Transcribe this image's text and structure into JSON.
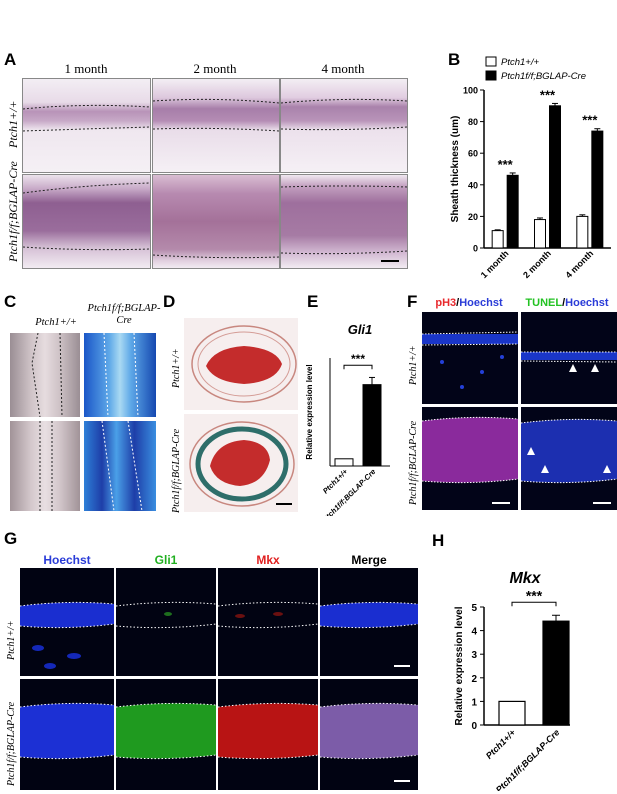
{
  "panels": {
    "A": "A",
    "B": "B",
    "C": "C",
    "D": "D",
    "E": "E",
    "F": "F",
    "G": "G",
    "H": "H"
  },
  "panelA": {
    "columns": [
      "1 month",
      "2 month",
      "4 month"
    ],
    "rows": [
      "Ptch1+/+",
      "Ptch1f/f;BGLAP-Cre"
    ]
  },
  "panelC": {
    "columns": [
      "Ptch1+/+",
      "Ptch1f/f;BGLAP-Cre"
    ]
  },
  "panelD": {
    "rows": [
      "Ptch1+/+",
      "Ptch1f/f;BGLAP-Cre"
    ]
  },
  "panelF": {
    "columns": [
      {
        "a": "pH3",
        "sep": "/",
        "b": "Hoechst",
        "a_color": "#e8282c",
        "b_color": "#2a3cd8"
      },
      {
        "a": "TUNEL",
        "sep": "/",
        "b": "Hoechst",
        "a_color": "#22c222",
        "b_color": "#2a3cd8"
      }
    ],
    "rows": [
      "Ptch1+/+",
      "Ptch1f/f;BGLAP-Cre"
    ]
  },
  "panelG": {
    "columns": [
      {
        "label": "Hoechst",
        "color": "#2a3cd8"
      },
      {
        "label": "Gli1",
        "color": "#22b022"
      },
      {
        "label": "Mkx",
        "color": "#e02020"
      },
      {
        "label": "Merge",
        "color": "#000000"
      }
    ],
    "rows": [
      "Ptch1+/+",
      "Ptch1f/f;BGLAP-Cre"
    ]
  },
  "chart_data": [
    {
      "panel": "B",
      "type": "bar",
      "categories": [
        "1 month",
        "2 month",
        "4 month"
      ],
      "series": [
        {
          "name": "Ptch1+/+",
          "values": [
            11,
            18,
            20
          ],
          "errors": [
            0.5,
            1,
            1
          ],
          "fill": "#ffffff"
        },
        {
          "name": "Ptch1f/f;BGLAP-Cre",
          "values": [
            46,
            90,
            74
          ],
          "errors": [
            1.5,
            1.5,
            1.5
          ],
          "fill": "#000000"
        }
      ],
      "ylabel": "Sheath thickness (um)",
      "ylim": [
        0,
        100
      ],
      "yticks": [
        0,
        20,
        40,
        60,
        80,
        100
      ],
      "significance": [
        "***",
        "***",
        "***"
      ],
      "legend": "top"
    },
    {
      "panel": "E",
      "type": "bar",
      "title": "Gli1",
      "categories": [
        "Ptch1+/+",
        "Ptch1f/f;BGLAP-Cre"
      ],
      "values": [
        1,
        11.3
      ],
      "errors": [
        0,
        1
      ],
      "fills": [
        "#ffffff",
        "#000000"
      ],
      "ylabel": "Relative expression level",
      "ylim": [
        0,
        15
      ],
      "significance": "***"
    },
    {
      "panel": "H",
      "type": "bar",
      "title": "Mkx",
      "categories": [
        "Ptch1+/+",
        "Ptch1f/f;BGLAP-Cre"
      ],
      "values": [
        1,
        4.4
      ],
      "errors": [
        0,
        0.25
      ],
      "fills": [
        "#ffffff",
        "#000000"
      ],
      "ylabel": "Relative expression level",
      "ylim": [
        0,
        5
      ],
      "yticks": [
        0,
        1,
        2,
        3,
        4,
        5
      ],
      "significance": "***"
    }
  ]
}
